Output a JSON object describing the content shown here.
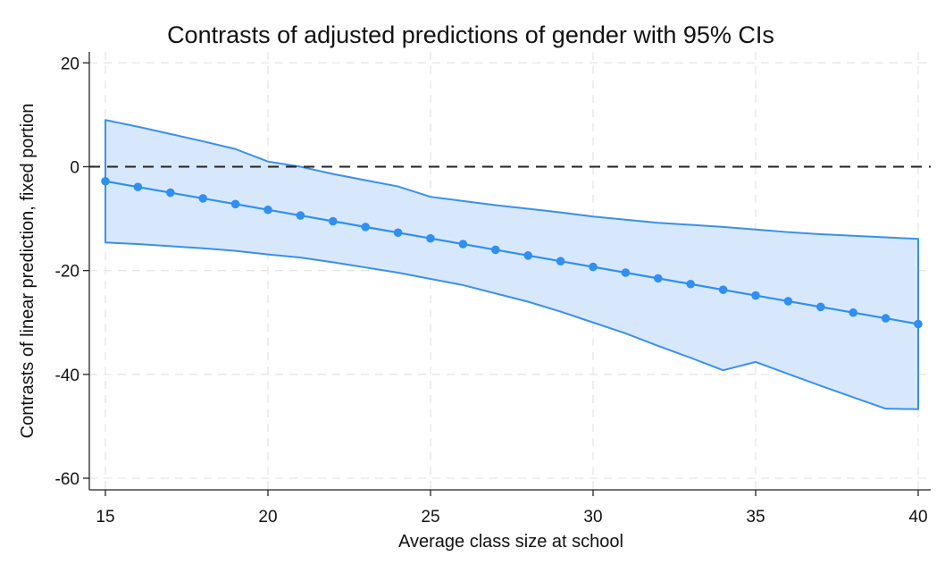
{
  "chart_data": {
    "type": "line",
    "title": "Contrasts of adjusted predictions of gender with 95% CIs",
    "xlabel": "Average class size at school",
    "ylabel": "Contrasts of linear prediction, fixed portion",
    "xlim": [
      15,
      40
    ],
    "ylim": [
      -62,
      22
    ],
    "x_ticks": [
      15,
      20,
      25,
      30,
      35,
      40
    ],
    "x_tick_labels": [
      "15",
      "20",
      "25",
      "30",
      "35",
      "40"
    ],
    "y_ticks": [
      20,
      0,
      -20,
      -40,
      -60
    ],
    "y_tick_labels": [
      "20",
      "0",
      "-20",
      "-40",
      "-60"
    ],
    "reference_line": 0,
    "grid": true,
    "legend": "none",
    "colors": {
      "line": "#2f8ff2",
      "band_fill": "#d7e8fc",
      "band_edge": "#3a90ea",
      "reference": "#222222"
    },
    "x": [
      15,
      16,
      17,
      18,
      19,
      20,
      21,
      22,
      23,
      24,
      25,
      26,
      27,
      28,
      29,
      30,
      31,
      32,
      33,
      34,
      35,
      36,
      37,
      38,
      39,
      40
    ],
    "series": [
      {
        "values": [
          -2.8,
          -3.9,
          -5.0,
          -6.1,
          -7.2,
          -8.3,
          -9.4,
          -10.5,
          -11.6,
          -12.7,
          -13.8,
          -14.9,
          -16.0,
          -17.1,
          -18.2,
          -19.3,
          -20.4,
          -21.5,
          -22.6,
          -23.7,
          -24.8,
          -25.9,
          -27.0,
          -28.1,
          -29.2,
          -30.3
        ],
        "upper": [
          9.0,
          7.7,
          6.3,
          4.9,
          3.4,
          1.0,
          0.0,
          -1.4,
          -2.6,
          -3.8,
          -5.8,
          -6.6,
          -7.4,
          -8.1,
          -8.8,
          -9.6,
          -10.2,
          -10.8,
          -11.2,
          -11.6,
          -12.1,
          -12.6,
          -13.0,
          -13.3,
          -13.6,
          -13.9
        ],
        "lower": [
          -14.6,
          -14.9,
          -15.3,
          -15.7,
          -16.2,
          -16.9,
          -17.5,
          -18.4,
          -19.4,
          -20.4,
          -21.6,
          -22.8,
          -24.4,
          -26.0,
          -27.9,
          -30.0,
          -32.1,
          -34.5,
          -36.8,
          -39.2,
          -37.6,
          -39.9,
          -42.2,
          -44.4,
          -46.6,
          -46.7
        ]
      }
    ]
  }
}
